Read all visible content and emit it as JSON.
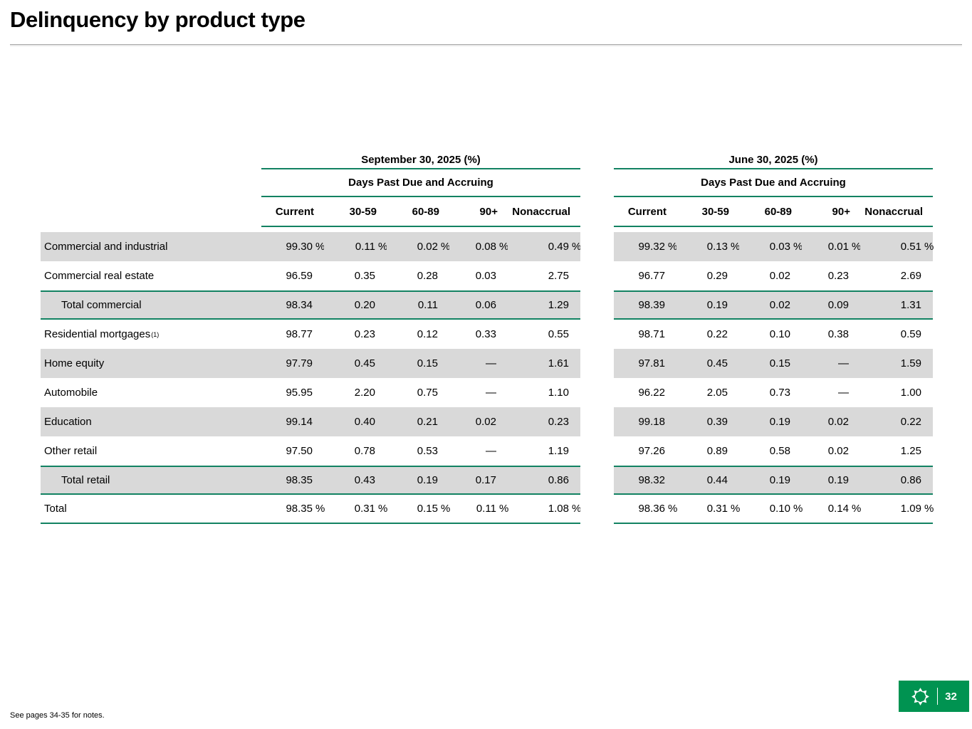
{
  "slide": {
    "title": "Delinquency by product type",
    "footnote": "See pages 34-35 for notes.",
    "page_number": "32"
  },
  "theme": {
    "accent_green": "#128262",
    "logo_green": "#009351",
    "row_shade": "#d9d9d9"
  },
  "table": {
    "groups": [
      {
        "title": "September 30, 2025 (%)",
        "subtitle": "Days Past Due and Accruing"
      },
      {
        "title": "June 30, 2025 (%)",
        "subtitle": "Days Past Due and Accruing"
      }
    ],
    "columns": [
      "Current",
      "30-59",
      "60-89",
      "90+",
      "Nonaccrual"
    ],
    "percent_sign": "%",
    "rows": [
      {
        "label": "Commercial and industrial",
        "pct": true,
        "shade": true,
        "sept": [
          "99.30",
          "0.11",
          "0.02",
          "0.08",
          "0.49"
        ],
        "june": [
          "99.32",
          "0.13",
          "0.03",
          "0.01",
          "0.51"
        ]
      },
      {
        "label": "Commercial real estate",
        "sept": [
          "96.59",
          "0.35",
          "0.28",
          "0.03",
          "2.75"
        ],
        "june": [
          "96.77",
          "0.29",
          "0.02",
          "0.23",
          "2.69"
        ]
      },
      {
        "label": "Total commercial",
        "indent": true,
        "shade": true,
        "total": true,
        "sept": [
          "98.34",
          "0.20",
          "0.11",
          "0.06",
          "1.29"
        ],
        "june": [
          "98.39",
          "0.19",
          "0.02",
          "0.09",
          "1.31"
        ]
      },
      {
        "label": "Residential mortgages",
        "sup": "(1)",
        "sept": [
          "98.77",
          "0.23",
          "0.12",
          "0.33",
          "0.55"
        ],
        "june": [
          "98.71",
          "0.22",
          "0.10",
          "0.38",
          "0.59"
        ]
      },
      {
        "label": "Home equity",
        "shade": true,
        "sept": [
          "97.79",
          "0.45",
          "0.15",
          "—",
          "1.61"
        ],
        "june": [
          "97.81",
          "0.45",
          "0.15",
          "—",
          "1.59"
        ]
      },
      {
        "label": "Automobile",
        "sept": [
          "95.95",
          "2.20",
          "0.75",
          "—",
          "1.10"
        ],
        "june": [
          "96.22",
          "2.05",
          "0.73",
          "—",
          "1.00"
        ]
      },
      {
        "label": "Education",
        "shade": true,
        "sept": [
          "99.14",
          "0.40",
          "0.21",
          "0.02",
          "0.23"
        ],
        "june": [
          "99.18",
          "0.39",
          "0.19",
          "0.02",
          "0.22"
        ]
      },
      {
        "label": "Other retail",
        "sept": [
          "97.50",
          "0.78",
          "0.53",
          "—",
          "1.19"
        ],
        "june": [
          "97.26",
          "0.89",
          "0.58",
          "0.02",
          "1.25"
        ]
      },
      {
        "label": "Total retail",
        "indent": true,
        "shade": true,
        "total": true,
        "sept": [
          "98.35",
          "0.43",
          "0.19",
          "0.17",
          "0.86"
        ],
        "june": [
          "98.32",
          "0.44",
          "0.19",
          "0.19",
          "0.86"
        ]
      },
      {
        "label": "Total",
        "pct": true,
        "grand": true,
        "sept": [
          "98.35",
          "0.31",
          "0.15",
          "0.11",
          "1.08"
        ],
        "june": [
          "98.36",
          "0.31",
          "0.10",
          "0.14",
          "1.09"
        ]
      }
    ]
  }
}
